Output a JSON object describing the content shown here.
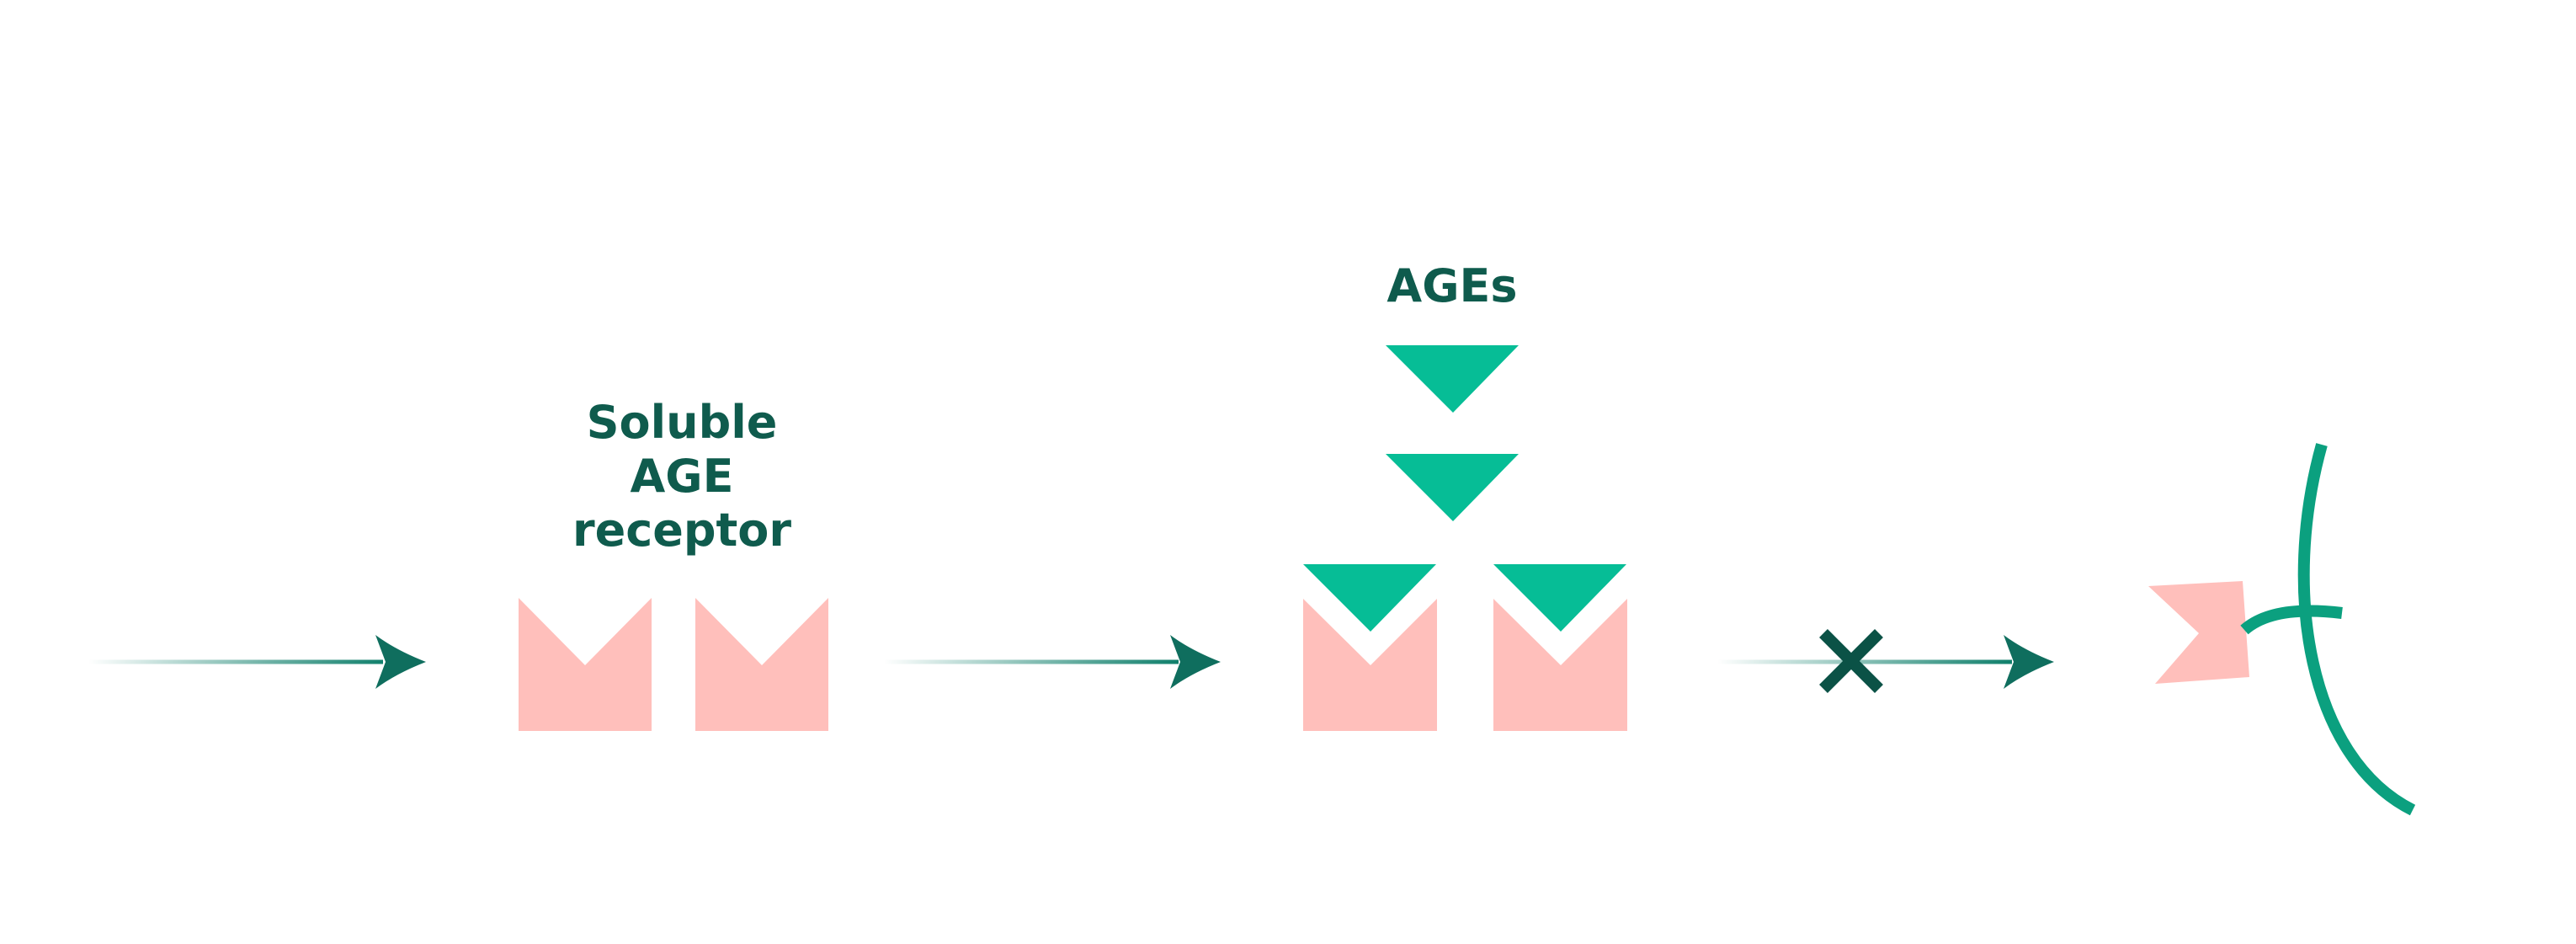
{
  "labels": {
    "soluble_receptor": [
      "Soluble",
      "AGE",
      "receptor"
    ],
    "ages": "AGEs"
  },
  "colors": {
    "arrow": "#0f7f6b",
    "arrowhead": "#0f6e5e",
    "receptor": "#ffbfbb",
    "ages": "#06bd96",
    "block_x": "#0b5246",
    "membrane": "#0ba07f",
    "label": "#0f5b4d",
    "background": "#ffffff"
  },
  "icons": {
    "blocked": "x-icon"
  }
}
